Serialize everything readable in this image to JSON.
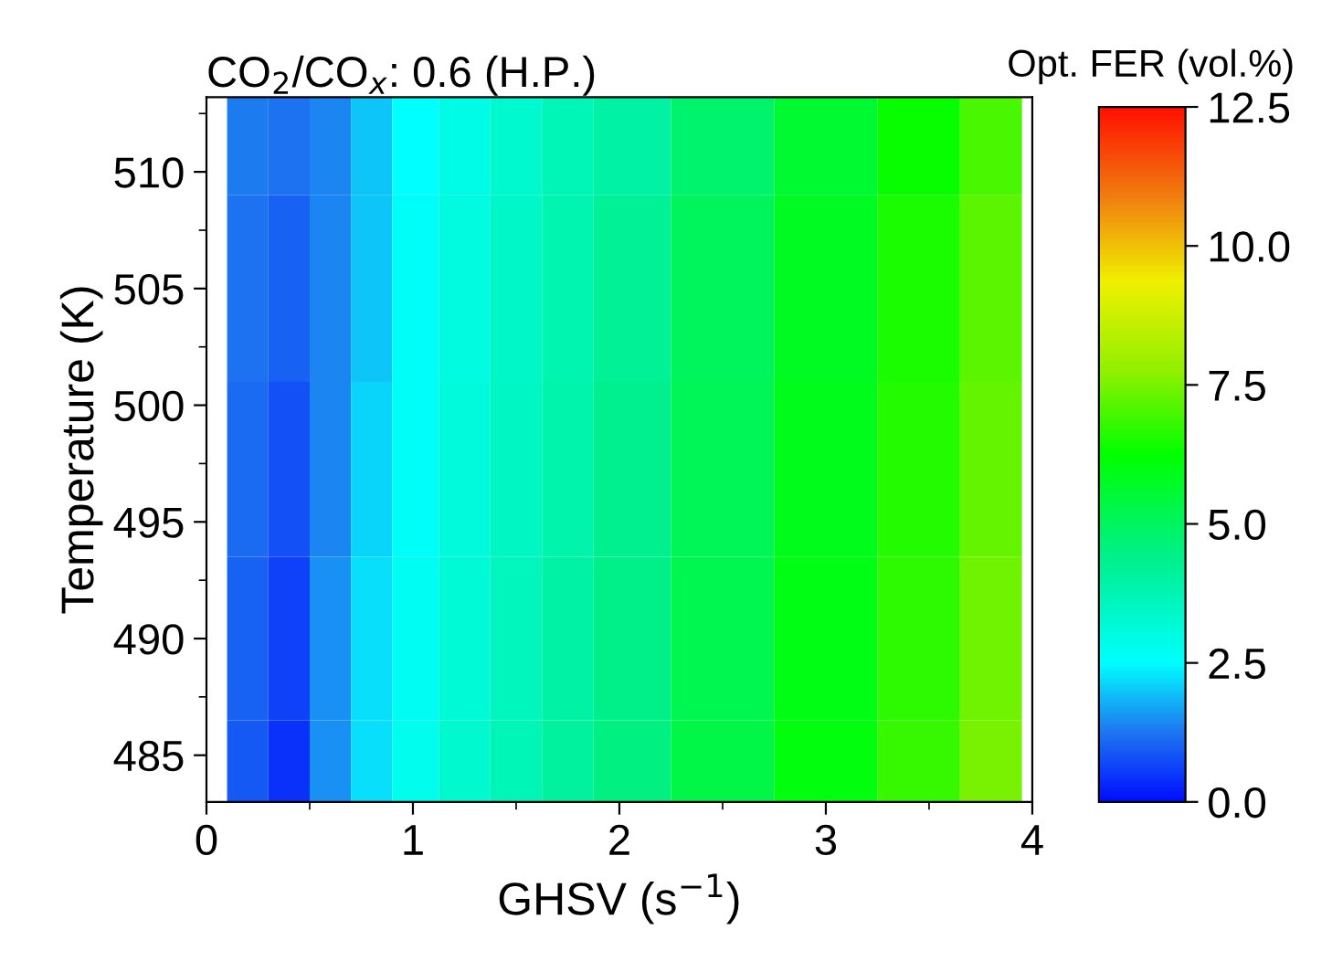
{
  "chart_data": {
    "type": "heatmap",
    "title": "CO$_{2}$/CO$_{x}$: 0.6 (H.P.)",
    "xlabel": "GHSV (s$^{−1}$)",
    "ylabel": "Temperature (K)",
    "clabel": "Opt. FER (vol.%)",
    "x": [
      0.2,
      0.4,
      0.6,
      0.8,
      1.0,
      1.25,
      1.5,
      1.75,
      2.0,
      2.5,
      3.0,
      3.5,
      3.8
    ],
    "y": [
      513,
      505,
      497,
      490,
      483
    ],
    "cells": [
      [
        1.3,
        1.2,
        1.4,
        2.0,
        2.5,
        2.9,
        3.3,
        3.7,
        4.0,
        4.8,
        5.6,
        6.3,
        7.0
      ],
      [
        1.2,
        1.0,
        1.4,
        2.0,
        2.6,
        3.0,
        3.4,
        3.8,
        4.2,
        5.0,
        5.8,
        6.5,
        7.2
      ],
      [
        1.1,
        0.8,
        1.4,
        2.1,
        2.6,
        3.1,
        3.5,
        3.9,
        4.3,
        5.1,
        5.9,
        6.6,
        7.3
      ],
      [
        1.0,
        0.6,
        1.5,
        2.2,
        2.7,
        3.2,
        3.6,
        4.0,
        4.4,
        5.2,
        6.0,
        6.7,
        7.4
      ],
      [
        0.9,
        0.4,
        1.5,
        2.2,
        2.8,
        3.3,
        3.7,
        4.1,
        4.5,
        5.3,
        6.1,
        6.8,
        7.5
      ]
    ],
    "xlim": [
      0,
      4
    ],
    "xticks": [
      0,
      1,
      2,
      3,
      4
    ],
    "ylim": [
      483,
      513.2
    ],
    "yticks": [
      485,
      490,
      495,
      500,
      505,
      510
    ],
    "clim": [
      0,
      12.5
    ],
    "cticks": [
      {
        "value": 0,
        "label": "0.0"
      },
      {
        "value": 2.5,
        "label": "2.5"
      },
      {
        "value": 5,
        "label": "5.0"
      },
      {
        "value": 7.5,
        "label": "7.5"
      },
      {
        "value": 10,
        "label": "10.0"
      },
      {
        "value": 12.5,
        "label": "12.5"
      }
    ]
  }
}
